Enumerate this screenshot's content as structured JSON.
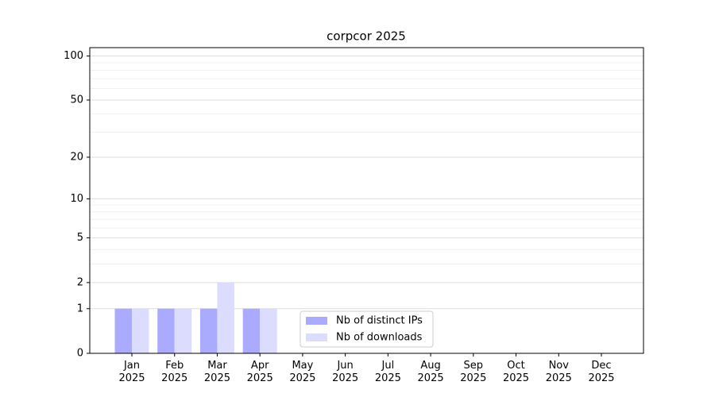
{
  "chart_data": {
    "type": "bar",
    "title": "corpcor 2025",
    "categories": [
      "Jan\n2025",
      "Feb\n2025",
      "Mar\n2025",
      "Apr\n2025",
      "May\n2025",
      "Jun\n2025",
      "Jul\n2025",
      "Aug\n2025",
      "Sep\n2025",
      "Oct\n2025",
      "Nov\n2025",
      "Dec\n2025"
    ],
    "series": [
      {
        "name": "Nb of distinct IPs",
        "color": "#aaaaff",
        "values": [
          1,
          1,
          1,
          1,
          0,
          0,
          0,
          0,
          0,
          0,
          0,
          0
        ]
      },
      {
        "name": "Nb of downloads",
        "color": "#dcdcff",
        "values": [
          1,
          1,
          2,
          1,
          0,
          0,
          0,
          0,
          0,
          0,
          0,
          0
        ]
      }
    ],
    "yscale": "log1p",
    "ylim": [
      0,
      114
    ],
    "yticks": [
      0,
      1,
      2,
      5,
      10,
      20,
      50,
      100
    ],
    "yminorticks": [
      3,
      4,
      6,
      7,
      8,
      9,
      30,
      40,
      60,
      70,
      80,
      90
    ],
    "grid": true,
    "legend": "lower center"
  }
}
